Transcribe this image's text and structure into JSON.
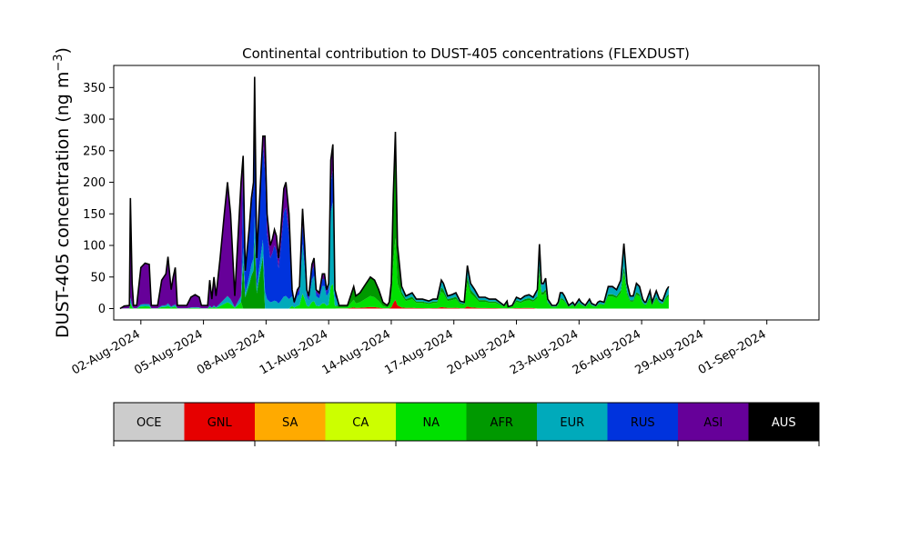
{
  "chart_data": {
    "type": "area",
    "title": "Continental contribution to DUST-405 concentrations (FLEXDUST)",
    "ylabel": "DUST-405 concentration (ng m",
    "ylabel_sup": "−3",
    "ylabel_close": ")",
    "ylim": [
      -18,
      385
    ],
    "yticks": [
      0,
      50,
      100,
      150,
      200,
      250,
      300,
      350
    ],
    "x_start": "2024-08-01",
    "x_end": "2024-09-01",
    "xlim": [
      -0.3,
      33.5
    ],
    "x_ticks": [
      {
        "x": 1,
        "label": "02-Aug-2024"
      },
      {
        "x": 4,
        "label": "05-Aug-2024"
      },
      {
        "x": 7,
        "label": "08-Aug-2024"
      },
      {
        "x": 10,
        "label": "11-Aug-2024"
      },
      {
        "x": 13,
        "label": "14-Aug-2024"
      },
      {
        "x": 16,
        "label": "17-Aug-2024"
      },
      {
        "x": 19,
        "label": "20-Aug-2024"
      },
      {
        "x": 22,
        "label": "23-Aug-2024"
      },
      {
        "x": 25,
        "label": "26-Aug-2024"
      },
      {
        "x": 28,
        "label": "29-Aug-2024"
      },
      {
        "x": 31,
        "label": "01-Sep-2024"
      }
    ],
    "grid": false,
    "legend_placement": "below (colorbar)",
    "categories": [
      "OCE",
      "GNL",
      "SA",
      "CA",
      "NA",
      "AFR",
      "EUR",
      "RUS",
      "ASI",
      "AUS"
    ],
    "colors": [
      "#cccccc",
      "#e60000",
      "#ffaa00",
      "#ccff00",
      "#00e000",
      "#009900",
      "#00aabb",
      "#0033dd",
      "#660099",
      "#000000"
    ],
    "total_points": [
      [
        0.0,
        0
      ],
      [
        0.2,
        4
      ],
      [
        0.45,
        5
      ],
      [
        0.5,
        175
      ],
      [
        0.58,
        40
      ],
      [
        0.65,
        5
      ],
      [
        0.8,
        5
      ],
      [
        1.0,
        65
      ],
      [
        1.2,
        72
      ],
      [
        1.4,
        70
      ],
      [
        1.5,
        5
      ],
      [
        1.8,
        5
      ],
      [
        2.0,
        45
      ],
      [
        2.2,
        55
      ],
      [
        2.3,
        82
      ],
      [
        2.45,
        30
      ],
      [
        2.55,
        50
      ],
      [
        2.65,
        65
      ],
      [
        2.75,
        5
      ],
      [
        3.0,
        5
      ],
      [
        3.2,
        5
      ],
      [
        3.4,
        18
      ],
      [
        3.6,
        22
      ],
      [
        3.8,
        18
      ],
      [
        3.9,
        5
      ],
      [
        4.2,
        5
      ],
      [
        4.3,
        45
      ],
      [
        4.4,
        15
      ],
      [
        4.5,
        50
      ],
      [
        4.6,
        20
      ],
      [
        4.8,
        80
      ],
      [
        5.0,
        150
      ],
      [
        5.15,
        200
      ],
      [
        5.3,
        150
      ],
      [
        5.5,
        20
      ],
      [
        5.8,
        200
      ],
      [
        5.9,
        242
      ],
      [
        6.0,
        60
      ],
      [
        6.2,
        130
      ],
      [
        6.3,
        175
      ],
      [
        6.4,
        200
      ],
      [
        6.45,
        367
      ],
      [
        6.55,
        80
      ],
      [
        6.75,
        210
      ],
      [
        6.85,
        273
      ],
      [
        6.95,
        273
      ],
      [
        7.05,
        150
      ],
      [
        7.2,
        100
      ],
      [
        7.3,
        110
      ],
      [
        7.4,
        125
      ],
      [
        7.5,
        115
      ],
      [
        7.6,
        80
      ],
      [
        7.7,
        120
      ],
      [
        7.85,
        190
      ],
      [
        7.95,
        200
      ],
      [
        8.1,
        150
      ],
      [
        8.25,
        30
      ],
      [
        8.35,
        10
      ],
      [
        8.5,
        30
      ],
      [
        8.6,
        35
      ],
      [
        8.75,
        158
      ],
      [
        8.85,
        100
      ],
      [
        8.95,
        30
      ],
      [
        9.05,
        20
      ],
      [
        9.2,
        70
      ],
      [
        9.3,
        80
      ],
      [
        9.4,
        30
      ],
      [
        9.55,
        25
      ],
      [
        9.7,
        55
      ],
      [
        9.8,
        55
      ],
      [
        9.9,
        30
      ],
      [
        10.0,
        40
      ],
      [
        10.1,
        235
      ],
      [
        10.2,
        260
      ],
      [
        10.3,
        30
      ],
      [
        10.5,
        5
      ],
      [
        10.9,
        5
      ],
      [
        11.1,
        25
      ],
      [
        11.2,
        35
      ],
      [
        11.3,
        20
      ],
      [
        11.5,
        25
      ],
      [
        11.8,
        40
      ],
      [
        12.0,
        50
      ],
      [
        12.2,
        45
      ],
      [
        12.4,
        30
      ],
      [
        12.6,
        10
      ],
      [
        12.8,
        5
      ],
      [
        12.9,
        10
      ],
      [
        13.0,
        40
      ],
      [
        13.1,
        180
      ],
      [
        13.2,
        280
      ],
      [
        13.3,
        100
      ],
      [
        13.5,
        35
      ],
      [
        13.7,
        20
      ],
      [
        14.0,
        25
      ],
      [
        14.2,
        15
      ],
      [
        14.5,
        15
      ],
      [
        14.8,
        12
      ],
      [
        15.0,
        15
      ],
      [
        15.2,
        15
      ],
      [
        15.4,
        45
      ],
      [
        15.5,
        40
      ],
      [
        15.7,
        20
      ],
      [
        15.9,
        22
      ],
      [
        16.1,
        25
      ],
      [
        16.3,
        12
      ],
      [
        16.5,
        10
      ],
      [
        16.65,
        68
      ],
      [
        16.8,
        40
      ],
      [
        17.0,
        30
      ],
      [
        17.2,
        18
      ],
      [
        17.5,
        18
      ],
      [
        17.7,
        15
      ],
      [
        18.0,
        15
      ],
      [
        18.2,
        10
      ],
      [
        18.4,
        5
      ],
      [
        18.55,
        12
      ],
      [
        18.6,
        3
      ],
      [
        18.8,
        5
      ],
      [
        19.0,
        18
      ],
      [
        19.2,
        15
      ],
      [
        19.4,
        20
      ],
      [
        19.6,
        22
      ],
      [
        19.8,
        18
      ],
      [
        20.0,
        30
      ],
      [
        20.1,
        102
      ],
      [
        20.2,
        40
      ],
      [
        20.3,
        40
      ],
      [
        20.4,
        48
      ],
      [
        20.5,
        15
      ],
      [
        20.7,
        5
      ],
      [
        20.9,
        5
      ],
      [
        21.0,
        10
      ],
      [
        21.1,
        25
      ],
      [
        21.2,
        25
      ],
      [
        21.3,
        20
      ],
      [
        21.5,
        5
      ],
      [
        21.7,
        10
      ],
      [
        21.8,
        5
      ],
      [
        22.0,
        15
      ],
      [
        22.1,
        10
      ],
      [
        22.3,
        5
      ],
      [
        22.5,
        15
      ],
      [
        22.6,
        8
      ],
      [
        22.8,
        5
      ],
      [
        22.9,
        10
      ],
      [
        23.0,
        12
      ],
      [
        23.2,
        10
      ],
      [
        23.4,
        35
      ],
      [
        23.6,
        35
      ],
      [
        23.8,
        30
      ],
      [
        24.0,
        45
      ],
      [
        24.15,
        103
      ],
      [
        24.3,
        40
      ],
      [
        24.45,
        20
      ],
      [
        24.6,
        20
      ],
      [
        24.75,
        40
      ],
      [
        24.9,
        35
      ],
      [
        25.05,
        15
      ],
      [
        25.15,
        10
      ],
      [
        25.2,
        10
      ],
      [
        25.4,
        28
      ],
      [
        25.5,
        10
      ],
      [
        25.7,
        28
      ],
      [
        25.85,
        15
      ],
      [
        26.0,
        12
      ],
      [
        26.2,
        30
      ],
      [
        26.3,
        35
      ]
    ],
    "total_peak": 367,
    "total_min": 0
  }
}
